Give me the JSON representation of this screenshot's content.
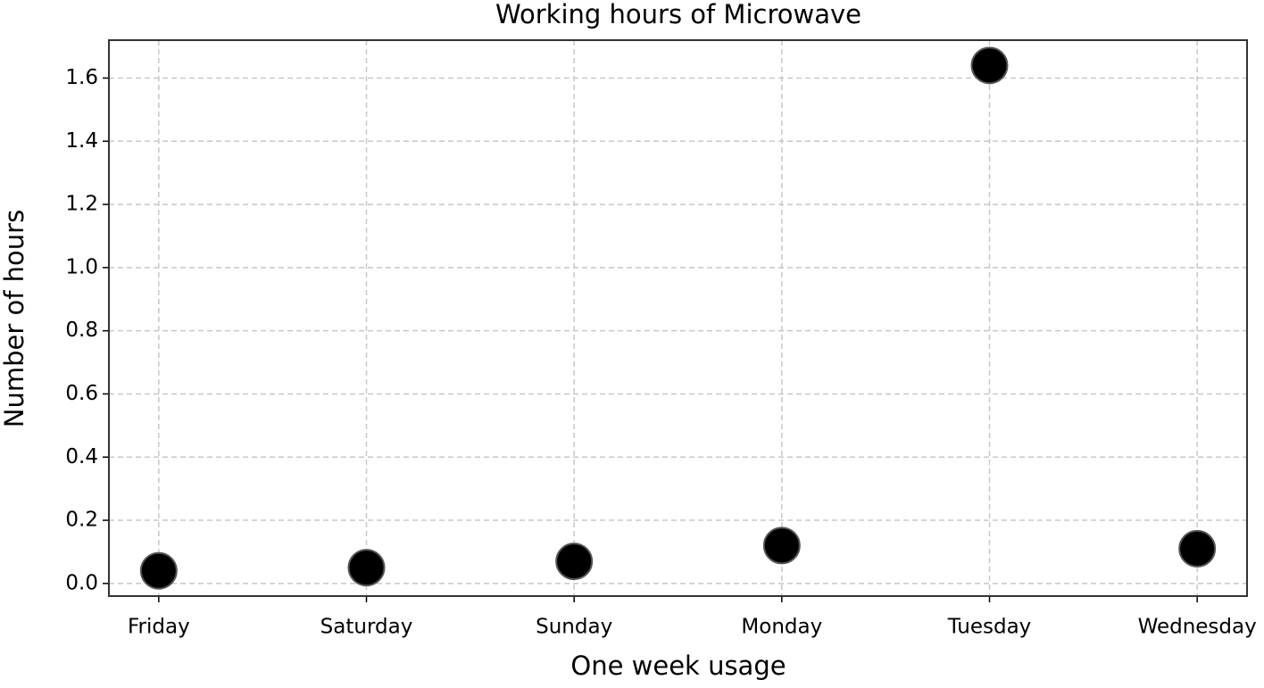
{
  "chart_data": {
    "type": "scatter",
    "title": "Working hours of Microwave",
    "xlabel": "One week usage",
    "ylabel": "Number of hours",
    "categories": [
      "Friday",
      "Saturday",
      "Sunday",
      "Monday",
      "Tuesday",
      "Wednesday"
    ],
    "values": [
      0.04,
      0.05,
      0.07,
      0.12,
      1.64,
      0.11
    ],
    "color": "#000000",
    "ylim": [
      -0.04,
      1.72
    ],
    "yticks": [
      {
        "value": 0,
        "label": "0.0"
      },
      0.2,
      0.4,
      0.6,
      0.8,
      {
        "value": 1,
        "label": "1.0"
      },
      1.2,
      1.4,
      1.6
    ],
    "grid": true
  }
}
